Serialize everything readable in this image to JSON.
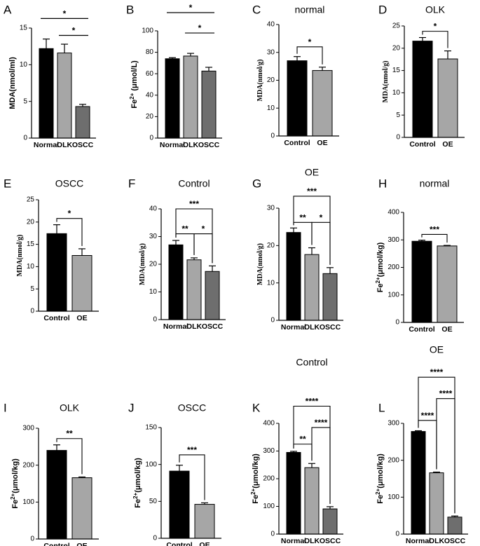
{
  "figure": {
    "background": "#ffffff",
    "bar_colors": [
      "#000000",
      "#a6a6a6",
      "#6e6e6e"
    ]
  },
  "chart_data": [
    {
      "panel": "A",
      "type": "bar",
      "title": "",
      "categories": [
        "Normal",
        "OLK",
        "OSCC"
      ],
      "values": [
        12.2,
        11.6,
        4.3
      ],
      "errors": [
        1.3,
        1.2,
        0.3
      ],
      "ylabel": "MDA(nmol/ml)",
      "ylim": [
        0,
        15
      ],
      "yticks": [
        0,
        5,
        10,
        15
      ],
      "significance": [
        {
          "from": 0,
          "to": 2,
          "label": "*",
          "style": "line",
          "level": 16.3
        },
        {
          "from": 1,
          "to": 2,
          "label": "*",
          "style": "line",
          "level": 14.0
        }
      ]
    },
    {
      "panel": "B",
      "type": "bar",
      "title": "",
      "categories": [
        "Normal",
        "OLK",
        "OSCC"
      ],
      "values": [
        74,
        76.5,
        62.5
      ],
      "errors": [
        1.0,
        2.5,
        3.5
      ],
      "ylabel": "Fe2+ (μmol/L)",
      "ylim": [
        0,
        100
      ],
      "yticks": [
        0,
        20,
        40,
        60,
        80,
        100
      ],
      "significance": [
        {
          "from": 0,
          "to": 2,
          "label": "*",
          "style": "line",
          "level": 117
        },
        {
          "from": 1,
          "to": 2,
          "label": "*",
          "style": "line",
          "level": 98
        }
      ]
    },
    {
      "panel": "C",
      "type": "bar",
      "title": "normal",
      "categories": [
        "Control",
        "OE"
      ],
      "values": [
        27,
        23.5
      ],
      "errors": [
        1.5,
        1.2
      ],
      "ylabel": "MDA(nmol/g)",
      "ylim": [
        0,
        40
      ],
      "yticks": [
        0,
        10,
        20,
        30,
        40
      ],
      "significance": [
        {
          "from": 0,
          "to": 1,
          "label": "*",
          "style": "bracket",
          "level": 32
        }
      ]
    },
    {
      "panel": "D",
      "type": "bar",
      "title": "OLK",
      "categories": [
        "Control",
        "OE"
      ],
      "values": [
        21.6,
        17.6
      ],
      "errors": [
        0.8,
        1.8
      ],
      "ylabel": "MDA(nmol/g)",
      "ylim": [
        0,
        25
      ],
      "yticks": [
        0,
        5,
        10,
        15,
        20,
        25
      ],
      "significance": [
        {
          "from": 0,
          "to": 1,
          "label": "*",
          "style": "bracket",
          "level": 23.8
        }
      ]
    },
    {
      "panel": "E",
      "type": "bar",
      "title": "OSCC",
      "categories": [
        "Control",
        "OE"
      ],
      "values": [
        17.4,
        12.5
      ],
      "errors": [
        2.0,
        1.5
      ],
      "ylabel": "MDA(nmol/g)",
      "ylim": [
        0,
        25
      ],
      "yticks": [
        0,
        5,
        10,
        15,
        20,
        25
      ],
      "significance": [
        {
          "from": 0,
          "to": 1,
          "label": "*",
          "style": "bracket",
          "level": 20.8
        }
      ]
    },
    {
      "panel": "F",
      "type": "bar",
      "title": "Control",
      "categories": [
        "Normal",
        "OLK",
        "OSCC"
      ],
      "values": [
        27,
        21.6,
        17.4
      ],
      "errors": [
        1.6,
        0.7,
        2.0
      ],
      "ylabel": "MDA(nmol/g)",
      "ylim": [
        0,
        40
      ],
      "yticks": [
        0,
        10,
        20,
        30,
        40
      ],
      "significance": [
        {
          "from": 0,
          "to": 1,
          "label": "**",
          "style": "bracket",
          "level": 31
        },
        {
          "from": 1,
          "to": 2,
          "label": "*",
          "style": "bracket",
          "level": 31
        },
        {
          "from": 0,
          "to": 2,
          "label": "***",
          "style": "bracket",
          "level": 40
        }
      ]
    },
    {
      "panel": "G",
      "type": "bar",
      "title": "OE",
      "categories": [
        "Normal",
        "OLK",
        "OSCC"
      ],
      "values": [
        23.5,
        17.6,
        12.5
      ],
      "errors": [
        1.2,
        1.8,
        1.6
      ],
      "ylabel": "MDA(nmol/g)",
      "ylim": [
        0,
        30
      ],
      "yticks": [
        0,
        10,
        20,
        30
      ],
      "significance": [
        {
          "from": 0,
          "to": 1,
          "label": "**",
          "style": "bracket",
          "level": 26.2
        },
        {
          "from": 1,
          "to": 2,
          "label": "*",
          "style": "bracket",
          "level": 26.2
        },
        {
          "from": 0,
          "to": 2,
          "label": "***",
          "style": "bracket",
          "level": 33.2
        }
      ]
    },
    {
      "panel": "H",
      "type": "bar",
      "title": "normal",
      "categories": [
        "Control",
        "OE"
      ],
      "values": [
        295,
        278
      ],
      "errors": [
        4,
        2
      ],
      "ylabel": "Fe2+(μmol/kg)",
      "ylim": [
        0,
        400
      ],
      "yticks": [
        0,
        100,
        200,
        300,
        400
      ],
      "significance": [
        {
          "from": 0,
          "to": 1,
          "label": "***",
          "style": "bracket",
          "level": 320
        }
      ]
    },
    {
      "panel": "I",
      "type": "bar",
      "title": "OLK",
      "categories": [
        "Control",
        "OE"
      ],
      "values": [
        240,
        166
      ],
      "errors": [
        15,
        2
      ],
      "ylabel": "Fe2+(μmol/kg)",
      "ylim": [
        0,
        300
      ],
      "yticks": [
        0,
        100,
        200,
        300
      ],
      "significance": [
        {
          "from": 0,
          "to": 1,
          "label": "**",
          "style": "bracket",
          "level": 272
        }
      ]
    },
    {
      "panel": "J",
      "type": "bar",
      "title": "OSCC",
      "categories": [
        "Control",
        "OE"
      ],
      "values": [
        91,
        46
      ],
      "errors": [
        8,
        2
      ],
      "ylabel": "Fe2+(μmol/kg)",
      "ylim": [
        0,
        150
      ],
      "yticks": [
        0,
        50,
        100,
        150
      ],
      "significance": [
        {
          "from": 0,
          "to": 1,
          "label": "***",
          "style": "bracket",
          "level": 113
        }
      ]
    },
    {
      "panel": "K",
      "type": "bar",
      "title": "Control",
      "categories": [
        "Normal",
        "OLK",
        "OSCC"
      ],
      "values": [
        295,
        240,
        91
      ],
      "errors": [
        4,
        15,
        8
      ],
      "ylabel": "Fe2+(μmol/kg)",
      "ylim": [
        0,
        400
      ],
      "yticks": [
        0,
        100,
        200,
        300,
        400
      ],
      "significance": [
        {
          "from": 0,
          "to": 1,
          "label": "**",
          "style": "bracket",
          "level": 325
        },
        {
          "from": 1,
          "to": 2,
          "label": "****",
          "style": "bracket",
          "level": 385
        },
        {
          "from": 0,
          "to": 2,
          "label": "****",
          "style": "bracket",
          "level": 462
        }
      ]
    },
    {
      "panel": "L",
      "type": "bar",
      "title": "OE",
      "categories": [
        "Normal",
        "OLK",
        "OSCC"
      ],
      "values": [
        278,
        166,
        46
      ],
      "errors": [
        2,
        2,
        3
      ],
      "ylabel": "Fe2+(μmol/kg)",
      "ylim": [
        0,
        300
      ],
      "yticks": [
        0,
        100,
        200,
        300
      ],
      "significance": [
        {
          "from": 0,
          "to": 1,
          "label": "****",
          "style": "bracket",
          "level": 308
        },
        {
          "from": 1,
          "to": 2,
          "label": "****",
          "style": "bracket",
          "level": 367
        },
        {
          "from": 0,
          "to": 2,
          "label": "****",
          "style": "bracket",
          "level": 425
        }
      ]
    }
  ]
}
